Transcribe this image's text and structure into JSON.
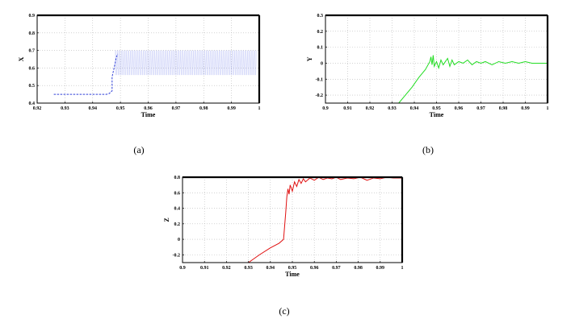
{
  "chart_data": [
    {
      "type": "line",
      "caption": "(a)",
      "xlabel": "Time",
      "ylabel": "X",
      "xlim": [
        0.92,
        1.0
      ],
      "ylim": [
        0.4,
        0.9
      ],
      "xticks": [
        "0.92",
        "0.93",
        "0.94",
        "0.95",
        "0.96",
        "0.97",
        "0.98",
        "0.99",
        "1"
      ],
      "yticks": [
        "0.4",
        "0.5",
        "0.6",
        "0.7",
        "0.8",
        "0.9"
      ],
      "grid": true,
      "color": "#3040d8",
      "series": [
        {
          "style": "dashed-then-band",
          "x": [
            0.926,
            0.93,
            0.935,
            0.94,
            0.945,
            0.946,
            0.947,
            0.947,
            0.948,
            0.9485,
            0.949,
            0.955,
            0.96,
            0.97,
            0.98,
            0.99,
            0.999
          ],
          "y": [
            0.45,
            0.45,
            0.45,
            0.45,
            0.45,
            0.455,
            0.47,
            0.55,
            0.62,
            0.66,
            0.68,
            0.68,
            0.69,
            0.67,
            0.68,
            0.68,
            0.67
          ],
          "band": {
            "x_start": 0.948,
            "x_end": 0.999,
            "y_low": 0.56,
            "y_high": 0.7
          }
        }
      ]
    },
    {
      "type": "line",
      "caption": "(b)",
      "xlabel": "Time",
      "ylabel": "Y",
      "xlim": [
        0.9,
        1.0
      ],
      "ylim": [
        -0.25,
        0.3
      ],
      "xticks": [
        "0.9",
        "0.91",
        "0.92",
        "0.93",
        "0.94",
        "0.95",
        "0.96",
        "0.97",
        "0.98",
        "0.99",
        "1"
      ],
      "yticks": [
        "-0.2",
        "-0.1",
        "0",
        "0.1",
        "0.2",
        "0.3"
      ],
      "grid": true,
      "color": "#22dd22",
      "series": [
        {
          "x": [
            0.933,
            0.936,
            0.939,
            0.942,
            0.945,
            0.947,
            0.9475,
            0.948,
            0.9485,
            0.949,
            0.95,
            0.951,
            0.952,
            0.953,
            0.954,
            0.955,
            0.956,
            0.957,
            0.958,
            0.96,
            0.962,
            0.964,
            0.966,
            0.968,
            0.97,
            0.972,
            0.975,
            0.978,
            0.981,
            0.984,
            0.987,
            0.99,
            0.993,
            0.996,
            1.0
          ],
          "y": [
            -0.25,
            -0.2,
            -0.15,
            -0.09,
            -0.04,
            0.01,
            0.04,
            -0.01,
            0.05,
            -0.02,
            0.01,
            -0.03,
            0.02,
            -0.01,
            0.01,
            0.03,
            -0.02,
            0.02,
            -0.01,
            0.01,
            0.0,
            0.02,
            -0.01,
            0.01,
            0.0,
            0.01,
            -0.01,
            0.01,
            0.0,
            0.01,
            0.0,
            0.01,
            0.0,
            0.0,
            0.0
          ]
        }
      ]
    },
    {
      "type": "line",
      "caption": "(c)",
      "xlabel": "Time",
      "ylabel": "Z",
      "xlim": [
        0.9,
        1.0
      ],
      "ylim": [
        -0.3,
        0.8
      ],
      "xticks": [
        "0.9",
        "0.91",
        "0.92",
        "0.93",
        "0.94",
        "0.95",
        "0.96",
        "0.97",
        "0.98",
        "0.99",
        "1"
      ],
      "yticks": [
        "-0.2",
        "0",
        "0.2",
        "0.4",
        "0.6",
        "0.8"
      ],
      "grid": true,
      "color": "#e01010",
      "series": [
        {
          "x": [
            0.93,
            0.935,
            0.94,
            0.944,
            0.946,
            0.947,
            0.9475,
            0.948,
            0.9485,
            0.949,
            0.95,
            0.951,
            0.952,
            0.953,
            0.954,
            0.955,
            0.956,
            0.958,
            0.96,
            0.962,
            0.964,
            0.966,
            0.968,
            0.97,
            0.972,
            0.975,
            0.978,
            0.981,
            0.984,
            0.987,
            0.99,
            0.993,
            0.996,
            1.0
          ],
          "y": [
            -0.3,
            -0.2,
            -0.11,
            -0.05,
            0.0,
            0.35,
            0.55,
            0.65,
            0.58,
            0.7,
            0.62,
            0.74,
            0.68,
            0.77,
            0.72,
            0.78,
            0.74,
            0.79,
            0.76,
            0.8,
            0.77,
            0.79,
            0.78,
            0.8,
            0.77,
            0.79,
            0.78,
            0.8,
            0.76,
            0.79,
            0.78,
            0.8,
            0.79,
            0.79
          ]
        }
      ]
    }
  ]
}
